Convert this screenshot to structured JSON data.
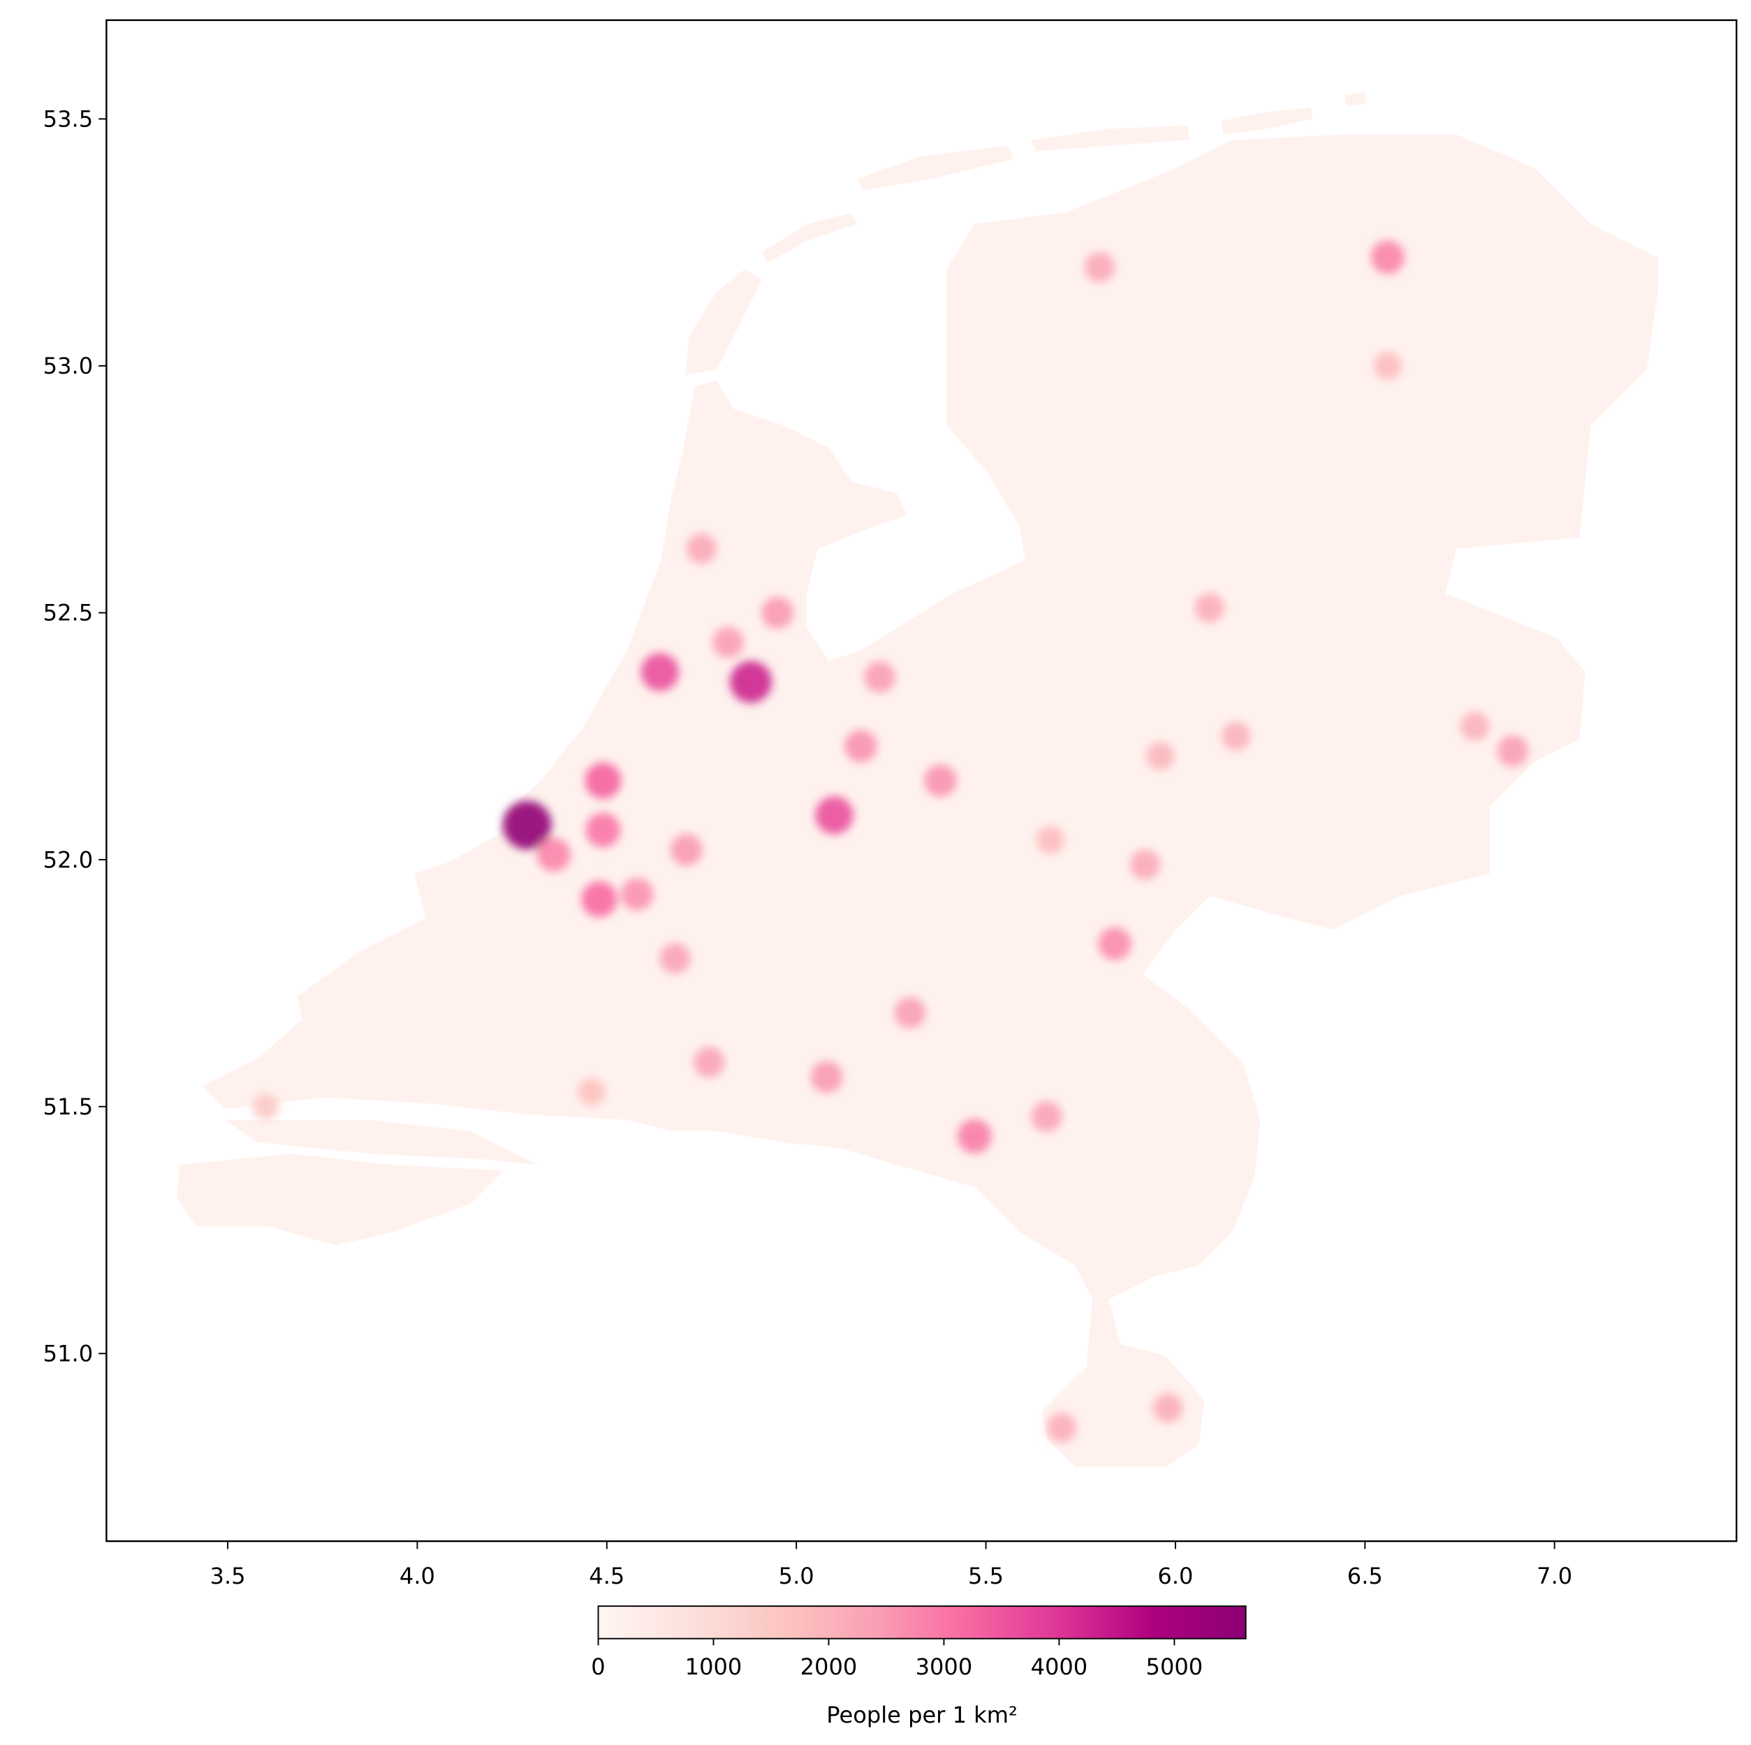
{
  "chart_data": {
    "type": "heatmap",
    "colorbar_label": "People per 1 km²",
    "xlim": [
      3.18,
      7.48
    ],
    "ylim": [
      50.62,
      53.7
    ],
    "xticks": [
      {
        "value": 3.5,
        "label": "3.5"
      },
      {
        "value": 4.0,
        "label": "4.0"
      },
      {
        "value": 4.5,
        "label": "4.5"
      },
      {
        "value": 5.0,
        "label": "5.0"
      },
      {
        "value": 5.5,
        "label": "5.5"
      },
      {
        "value": 6.0,
        "label": "6.0"
      },
      {
        "value": 6.5,
        "label": "6.5"
      },
      {
        "value": 7.0,
        "label": "7.0"
      }
    ],
    "yticks": [
      {
        "value": 51.0,
        "label": "51.0"
      },
      {
        "value": 51.5,
        "label": "51.5"
      },
      {
        "value": 52.0,
        "label": "52.0"
      },
      {
        "value": 52.5,
        "label": "52.5"
      },
      {
        "value": 53.0,
        "label": "53.0"
      },
      {
        "value": 53.5,
        "label": "53.5"
      }
    ],
    "clim": [
      0,
      5620
    ],
    "cticks": [
      0,
      1000,
      2000,
      3000,
      4000,
      5000
    ],
    "colormap": [
      "#fff7f3",
      "#fde0dd",
      "#fcc5c0",
      "#fa9fb5",
      "#f768a1",
      "#dd3497",
      "#ae017e",
      "#8c0175"
    ],
    "hotspots": {
      "lon": [
        4.29,
        4.88,
        4.64,
        4.49,
        4.49,
        4.36,
        4.48,
        4.58,
        5.1,
        5.38,
        5.22,
        5.17,
        4.82,
        4.95,
        4.75,
        4.71,
        4.68,
        4.77,
        5.08,
        5.3,
        5.47,
        5.66,
        5.84,
        5.92,
        5.96,
        6.09,
        6.89,
        6.79,
        6.56,
        5.8,
        5.98,
        5.7,
        5.67,
        6.16,
        6.56,
        3.6,
        4.46
      ],
      "lat": [
        52.07,
        52.36,
        52.38,
        52.16,
        52.06,
        52.01,
        51.92,
        51.93,
        52.09,
        52.16,
        52.37,
        52.23,
        52.44,
        52.5,
        52.63,
        52.02,
        51.8,
        51.59,
        51.56,
        51.69,
        51.44,
        51.48,
        51.83,
        51.99,
        52.21,
        52.51,
        52.22,
        52.27,
        53.22,
        53.2,
        50.89,
        50.85,
        52.04,
        52.25,
        53.0,
        51.5,
        51.53
      ],
      "values": [
        5500,
        4300,
        3600,
        3300,
        3000,
        2800,
        3200,
        2600,
        3600,
        2600,
        2400,
        2600,
        2400,
        2500,
        2200,
        2500,
        2300,
        2300,
        2500,
        2400,
        2900,
        2300,
        2700,
        2200,
        1900,
        2100,
        2400,
        2000,
        2800,
        2200,
        2100,
        2100,
        1800,
        2000,
        1800,
        1500,
        1700
      ]
    }
  }
}
